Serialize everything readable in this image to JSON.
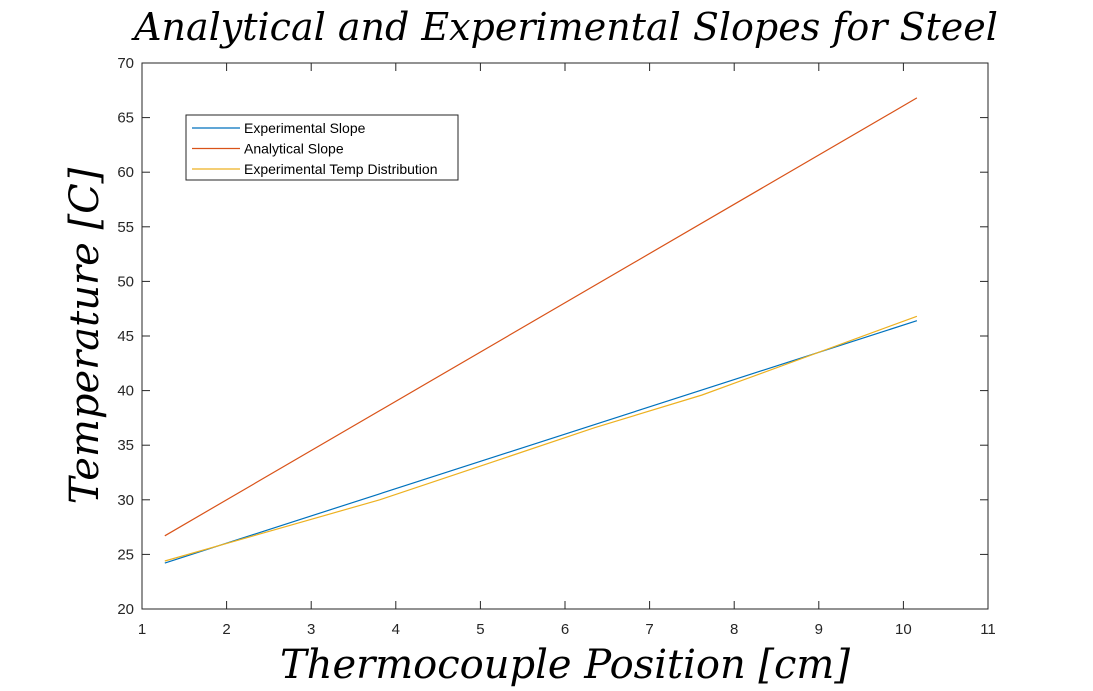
{
  "chart_data": {
    "type": "line",
    "title": "Analytical and Experimental Slopes for Steel",
    "xlabel": "Thermocouple Position [cm]",
    "ylabel": "Temperature [C]",
    "xlim": [
      1,
      11
    ],
    "ylim": [
      20,
      70
    ],
    "xticks": [
      1,
      2,
      3,
      4,
      5,
      6,
      7,
      8,
      9,
      10,
      11
    ],
    "yticks": [
      20,
      25,
      30,
      35,
      40,
      45,
      50,
      55,
      60,
      65,
      70
    ],
    "grid": false,
    "legend_position": "top-left",
    "series": [
      {
        "name": "Experimental Slope",
        "color": "#0072BD",
        "x": [
          1.27,
          10.16
        ],
        "y": [
          24.2,
          46.4
        ]
      },
      {
        "name": "Analytical Slope",
        "color": "#D95319",
        "x": [
          1.27,
          10.16
        ],
        "y": [
          26.7,
          66.8
        ]
      },
      {
        "name": "Experimental Temp Distribution",
        "color": "#EDB120",
        "x": [
          1.27,
          2.54,
          3.81,
          5.08,
          6.35,
          7.62,
          8.89,
          10.16
        ],
        "y": [
          24.4,
          27.2,
          30.0,
          33.3,
          36.6,
          39.6,
          43.2,
          46.8
        ]
      }
    ]
  }
}
